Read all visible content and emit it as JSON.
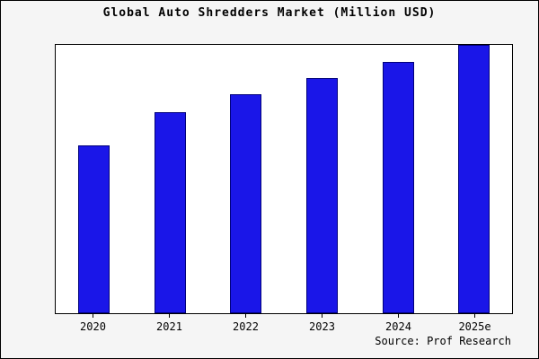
{
  "title": "Global Auto Shredders Market (Million USD)",
  "source": "Source: Prof Research",
  "chart_data": {
    "type": "bar",
    "title": "Global Auto Shredders Market (Million USD)",
    "categories": [
      "2020",
      "2021",
      "2022",
      "2023",
      "2024",
      "2025e"
    ],
    "values": [
      62.5,
      75,
      81.5,
      87.5,
      93.5,
      100
    ],
    "xlabel": "",
    "ylabel": "",
    "ylim": [
      0,
      100
    ],
    "grid": false,
    "legend": false,
    "bar_color": "#1a16e8",
    "bar_edge_color": "#00007a",
    "plot_background": "#ffffff",
    "outer_background": "#f5f5f5"
  }
}
